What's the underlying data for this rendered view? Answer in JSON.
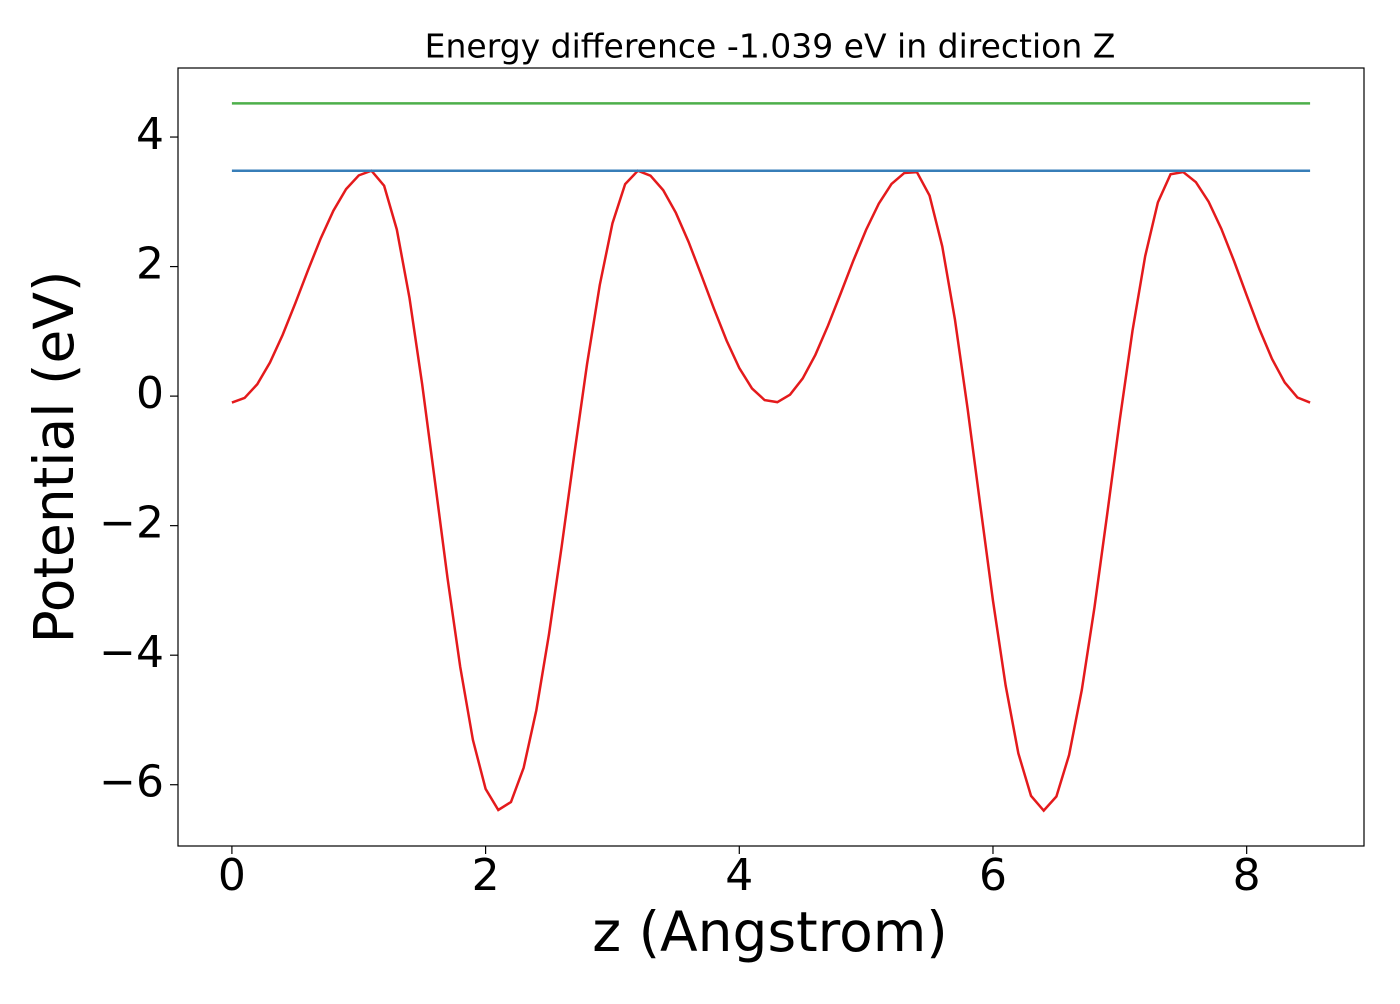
{
  "chart_data": {
    "type": "line",
    "title": "Energy difference -1.039 eV in direction Z",
    "xlabel": "z (Angstrom)",
    "ylabel": "Potential (eV)",
    "xlim": [
      -0.425,
      8.925
    ],
    "ylim": [
      -6.946,
      5.066
    ],
    "xticks": [
      0,
      2,
      4,
      6,
      8
    ],
    "yticks": [
      {
        "value": -6,
        "label": "−6"
      },
      {
        "value": -4,
        "label": "−4"
      },
      {
        "value": -2,
        "label": "−2"
      },
      0,
      2,
      4
    ],
    "grid": false,
    "series": [
      {
        "color": "#e41a1c",
        "x": [
          0,
          0.1,
          0.2,
          0.3,
          0.4,
          0.5,
          0.6,
          0.7,
          0.8,
          0.9,
          1.0,
          1.1,
          1.2,
          1.3,
          1.4,
          1.5,
          1.6,
          1.7,
          1.8,
          1.9,
          2.0,
          2.1,
          2.2,
          2.3,
          2.4,
          2.5,
          2.6,
          2.7,
          2.8,
          2.9,
          3.0,
          3.1,
          3.2,
          3.3,
          3.4,
          3.5,
          3.6,
          3.7,
          3.8,
          3.9,
          4.0,
          4.1,
          4.2,
          4.3,
          4.4,
          4.5,
          4.6,
          4.7,
          4.8,
          4.9,
          5.0,
          5.1,
          5.2,
          5.3,
          5.4,
          5.5,
          5.6,
          5.7,
          5.8,
          5.9,
          6.0,
          6.1,
          6.2,
          6.3,
          6.4,
          6.5,
          6.6,
          6.7,
          6.8,
          6.9,
          7.0,
          7.1,
          7.2,
          7.3,
          7.4,
          7.5,
          7.6,
          7.7,
          7.8,
          7.9,
          8.0,
          8.1,
          8.2,
          8.3,
          8.4,
          8.5
        ],
        "values": [
          -0.1,
          -0.028,
          0.184,
          0.518,
          0.946,
          1.435,
          1.945,
          2.434,
          2.862,
          3.196,
          3.408,
          3.48,
          3.248,
          2.573,
          1.516,
          0.183,
          -1.308,
          -2.812,
          -4.181,
          -5.308,
          -6.064,
          -6.39,
          -6.267,
          -5.738,
          -4.85,
          -3.673,
          -2.318,
          -0.887,
          0.497,
          1.715,
          2.668,
          3.273,
          3.48,
          3.403,
          3.18,
          2.83,
          2.382,
          1.873,
          1.351,
          0.857,
          0.434,
          0.119,
          -0.062,
          -0.093,
          0.022,
          0.273,
          0.638,
          1.091,
          1.588,
          2.096,
          2.569,
          2.973,
          3.276,
          3.444,
          3.459,
          3.097,
          2.313,
          1.184,
          -0.194,
          -1.687,
          -3.159,
          -4.47,
          -5.516,
          -6.172,
          -6.4,
          -6.181,
          -5.541,
          -4.54,
          -3.264,
          -1.829,
          -0.361,
          1.01,
          2.162,
          2.991,
          3.425,
          3.46,
          3.303,
          3.002,
          2.585,
          2.088,
          1.556,
          1.036,
          0.574,
          0.211,
          -0.021,
          -0.1
        ]
      },
      {
        "color": "#377eb8",
        "x": [
          0,
          8.5
        ],
        "values": [
          3.48,
          3.48
        ]
      },
      {
        "color": "#4daf4a",
        "x": [
          0,
          8.5
        ],
        "values": [
          4.519,
          4.519
        ]
      }
    ]
  }
}
